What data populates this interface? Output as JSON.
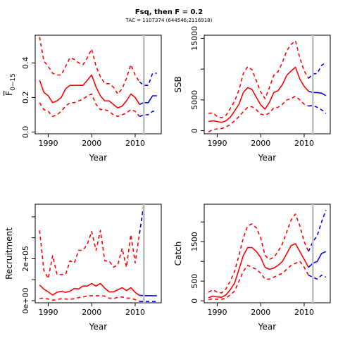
{
  "figure": {
    "title": "Fsq, then F = 0.2",
    "subtitle": "TAC = 1107374 (644546;2116918)"
  },
  "chart_data": [
    {
      "type": "line",
      "panel": "top-left",
      "xlabel": "Year",
      "ylabel": "F",
      "ylabel_sub": "0−15",
      "xlim": [
        1987,
        2016
      ],
      "ylim": [
        -0.01,
        0.56
      ],
      "x_ticks": [
        1990,
        2000,
        2010
      ],
      "y_ticks": [
        0.0,
        0.2,
        0.4
      ],
      "y_tick_labels": [
        "0.0",
        "0.2",
        "0.4"
      ],
      "reference_line_x": 2012,
      "grid": false,
      "legend": "none",
      "series": [
        {
          "role": "historical",
          "style": "solid",
          "color": "#ff0000",
          "x": [
            1988,
            1989,
            1990,
            1991,
            1992,
            1993,
            1994,
            1995,
            1996,
            1997,
            1998,
            1999,
            2000,
            2001,
            2002,
            2003,
            2004,
            2005,
            2006,
            2007,
            2008,
            2009,
            2010,
            2011
          ],
          "y": [
            0.3,
            0.23,
            0.21,
            0.17,
            0.18,
            0.2,
            0.25,
            0.27,
            0.27,
            0.27,
            0.27,
            0.3,
            0.33,
            0.26,
            0.21,
            0.18,
            0.18,
            0.16,
            0.14,
            0.15,
            0.18,
            0.22,
            0.2,
            0.16
          ]
        },
        {
          "role": "historical-upper",
          "style": "dashed",
          "color": "#ff0000",
          "x": [
            1988,
            1989,
            1990,
            1991,
            1992,
            1993,
            1994,
            1995,
            1996,
            1997,
            1998,
            1999,
            2000,
            2001,
            2002,
            2003,
            2004,
            2005,
            2006,
            2007,
            2008,
            2009,
            2010,
            2011
          ],
          "y": [
            0.55,
            0.41,
            0.38,
            0.34,
            0.33,
            0.33,
            0.38,
            0.43,
            0.42,
            0.4,
            0.39,
            0.43,
            0.48,
            0.38,
            0.32,
            0.28,
            0.28,
            0.26,
            0.22,
            0.25,
            0.31,
            0.39,
            0.33,
            0.29
          ]
        },
        {
          "role": "historical-lower",
          "style": "dashed",
          "color": "#ff0000",
          "x": [
            1988,
            1989,
            1990,
            1991,
            1992,
            1993,
            1994,
            1995,
            1996,
            1997,
            1998,
            1999,
            2000,
            2001,
            2002,
            2003,
            2004,
            2005,
            2006,
            2007,
            2008,
            2009,
            2010,
            2011
          ],
          "y": [
            0.17,
            0.13,
            0.12,
            0.09,
            0.1,
            0.12,
            0.15,
            0.17,
            0.17,
            0.18,
            0.19,
            0.21,
            0.22,
            0.16,
            0.13,
            0.13,
            0.12,
            0.1,
            0.09,
            0.1,
            0.11,
            0.13,
            0.12,
            0.09
          ]
        },
        {
          "role": "projection",
          "style": "solid",
          "color": "#0000ff",
          "x": [
            2011,
            2012,
            2013,
            2014,
            2015
          ],
          "y": [
            0.16,
            0.17,
            0.17,
            0.21,
            0.21
          ]
        },
        {
          "role": "projection-upper",
          "style": "dashed",
          "color": "#0000ff",
          "x": [
            2011,
            2012,
            2013,
            2014,
            2015
          ],
          "y": [
            0.29,
            0.27,
            0.27,
            0.34,
            0.34
          ]
        },
        {
          "role": "projection-lower",
          "style": "dashed",
          "color": "#0000ff",
          "x": [
            2011,
            2012,
            2013,
            2014,
            2015
          ],
          "y": [
            0.09,
            0.1,
            0.1,
            0.12,
            0.12
          ]
        }
      ]
    },
    {
      "type": "line",
      "panel": "top-right",
      "xlabel": "Year",
      "ylabel": "SSB",
      "xlim": [
        1987,
        2016
      ],
      "ylim": [
        -500,
        15500
      ],
      "x_ticks": [
        1990,
        2000,
        2010
      ],
      "y_ticks": [
        0,
        5000,
        10000,
        15000
      ],
      "y_tick_labels": [
        "0",
        "5000",
        "",
        "15000"
      ],
      "reference_line_x": 2012,
      "grid": false,
      "legend": "none",
      "series": [
        {
          "role": "historical",
          "style": "solid",
          "color": "#ff0000",
          "x": [
            1988,
            1989,
            1990,
            1991,
            1992,
            1993,
            1994,
            1995,
            1996,
            1997,
            1998,
            1999,
            2000,
            2001,
            2002,
            2003,
            2004,
            2005,
            2006,
            2007,
            2008,
            2009,
            2010,
            2011
          ],
          "y": [
            1500,
            1600,
            1500,
            1350,
            1600,
            2200,
            3200,
            4300,
            6200,
            7000,
            6700,
            5400,
            4200,
            3500,
            4600,
            6200,
            6500,
            7500,
            9000,
            9700,
            10300,
            8400,
            7200,
            6400
          ]
        },
        {
          "role": "historical-upper",
          "style": "dashed",
          "color": "#ff0000",
          "x": [
            1988,
            1989,
            1990,
            1991,
            1992,
            1993,
            1994,
            1995,
            1996,
            1997,
            1998,
            1999,
            2000,
            2001,
            2002,
            2003,
            2004,
            2005,
            2006,
            2007,
            2008,
            2009,
            2010,
            2011
          ],
          "y": [
            2800,
            2900,
            2300,
            2100,
            2500,
            3600,
            4800,
            6600,
            9300,
            10400,
            9900,
            8100,
            6300,
            5200,
            7000,
            9000,
            9600,
            11100,
            13000,
            14000,
            14600,
            11800,
            9700,
            8500
          ]
        },
        {
          "role": "historical-lower",
          "style": "dashed",
          "color": "#ff0000",
          "x": [
            1988,
            1989,
            1990,
            1991,
            1992,
            1993,
            1994,
            1995,
            1996,
            1997,
            1998,
            1999,
            2000,
            2001,
            2002,
            2003,
            2004,
            2005,
            2006,
            2007,
            2008,
            2009,
            2010,
            2011
          ],
          "y": [
            -200,
            200,
            300,
            350,
            600,
            1000,
            1600,
            2300,
            3100,
            3800,
            3900,
            3400,
            2700,
            2500,
            2900,
            3700,
            3800,
            4300,
            5000,
            5200,
            5600,
            5000,
            4300,
            4000
          ]
        },
        {
          "role": "projection",
          "style": "solid",
          "color": "#0000ff",
          "x": [
            2011,
            2012,
            2013,
            2014,
            2015
          ],
          "y": [
            6400,
            6200,
            6200,
            6100,
            5700
          ]
        },
        {
          "role": "projection-upper",
          "style": "dashed",
          "color": "#0000ff",
          "x": [
            2011,
            2012,
            2013,
            2014,
            2015
          ],
          "y": [
            8500,
            9200,
            9300,
            10600,
            11100
          ]
        },
        {
          "role": "projection-lower",
          "style": "dashed",
          "color": "#0000ff",
          "x": [
            2011,
            2012,
            2013,
            2014,
            2015
          ],
          "y": [
            4000,
            4100,
            3800,
            3400,
            2800
          ]
        }
      ]
    },
    {
      "type": "line",
      "panel": "bottom-left",
      "xlabel": "Year",
      "ylabel": "Recruitment",
      "xlim": [
        1987,
        2016
      ],
      "ylim": [
        -10000,
        460000
      ],
      "x_ticks": [
        1990,
        2000,
        2010
      ],
      "y_ticks": [
        0,
        100000,
        200000,
        300000,
        400000
      ],
      "y_tick_labels": [
        "0e+00",
        "",
        "2e+05",
        "",
        ""
      ],
      "reference_line_x": 2012,
      "grid": false,
      "legend": "none",
      "series": [
        {
          "role": "historical",
          "style": "solid",
          "color": "#ff0000",
          "x": [
            1988,
            1989,
            1990,
            1991,
            1992,
            1993,
            1994,
            1995,
            1996,
            1997,
            1998,
            1999,
            2000,
            2001,
            2002,
            2003,
            2004,
            2005,
            2006,
            2007,
            2008,
            2009,
            2010,
            2011
          ],
          "y": [
            75000,
            55000,
            42000,
            27000,
            40000,
            45000,
            40000,
            45000,
            58000,
            56000,
            70000,
            70000,
            82000,
            70000,
            82000,
            60000,
            42000,
            42000,
            52000,
            62000,
            48000,
            62000,
            40000,
            25000
          ]
        },
        {
          "role": "historical-upper",
          "style": "dashed",
          "color": "#ff0000",
          "x": [
            1988,
            1989,
            1990,
            1991,
            1992,
            1993,
            1994,
            1995,
            1996,
            1997,
            1998,
            1999,
            2000,
            2001,
            2002,
            2003,
            2004,
            2005,
            2006,
            2007,
            2008,
            2009,
            2010,
            2011,
            2012
          ],
          "y": [
            335000,
            145000,
            105000,
            215000,
            125000,
            125000,
            125000,
            190000,
            180000,
            240000,
            240000,
            270000,
            330000,
            240000,
            335000,
            190000,
            190000,
            160000,
            170000,
            250000,
            160000,
            315000,
            180000,
            320000,
            460000
          ]
        },
        {
          "role": "historical-lower",
          "style": "dashed",
          "color": "#ff0000",
          "x": [
            1988,
            1989,
            1990,
            1991,
            1992,
            1993,
            1994,
            1995,
            1996,
            1997,
            1998,
            1999,
            2000,
            2001,
            2002,
            2003,
            2004,
            2005,
            2006,
            2007,
            2008,
            2009,
            2010,
            2011
          ],
          "y": [
            10000,
            12000,
            8000,
            2000,
            5000,
            10000,
            8000,
            6000,
            10000,
            15000,
            18000,
            22000,
            24000,
            24000,
            24000,
            22000,
            12000,
            10000,
            16000,
            18000,
            12000,
            12000,
            5000,
            -3000
          ]
        },
        {
          "role": "projection",
          "style": "solid",
          "color": "#0000ff",
          "x": [
            2011,
            2012,
            2013,
            2014,
            2015
          ],
          "y": [
            25000,
            24500,
            24000,
            24000,
            23500
          ]
        },
        {
          "role": "projection-upper",
          "style": "dashed",
          "color": "#0000ff",
          "x": [
            2011,
            2012
          ],
          "y": [
            320000,
            460000
          ]
        },
        {
          "role": "projection-lower",
          "style": "dashed",
          "color": "#0000ff",
          "x": [
            2011,
            2012,
            2013,
            2014,
            2015
          ],
          "y": [
            -3000,
            -4000,
            -4000,
            -4000,
            -4000
          ]
        }
      ]
    },
    {
      "type": "line",
      "panel": "bottom-right",
      "xlabel": "Year",
      "ylabel": "Catch",
      "xlim": [
        1987,
        2016
      ],
      "ylim": [
        -50,
        2450
      ],
      "x_ticks": [
        1990,
        2000,
        2010
      ],
      "y_ticks": [
        0,
        500,
        1000,
        1500,
        2000
      ],
      "y_tick_labels": [
        "0",
        "500",
        "",
        "1500",
        ""
      ],
      "reference_line_x": 2012,
      "grid": false,
      "legend": "none",
      "series": [
        {
          "role": "historical",
          "style": "solid",
          "color": "#ff0000",
          "x": [
            1988,
            1989,
            1990,
            1991,
            1992,
            1993,
            1994,
            1995,
            1996,
            1997,
            1998,
            1999,
            2000,
            2001,
            2002,
            2003,
            2004,
            2005,
            2006,
            2007,
            2008,
            2009,
            2010,
            2011
          ],
          "y": [
            80,
            120,
            100,
            90,
            150,
            280,
            450,
            800,
            1150,
            1350,
            1350,
            1250,
            1100,
            850,
            800,
            830,
            900,
            1000,
            1200,
            1400,
            1450,
            1250,
            1050,
            850
          ]
        },
        {
          "role": "historical-upper",
          "style": "dashed",
          "color": "#ff0000",
          "x": [
            1988,
            1989,
            1990,
            1991,
            1992,
            1993,
            1994,
            1995,
            1996,
            1997,
            1998,
            1999,
            2000,
            2001,
            2002,
            2003,
            2004,
            2005,
            2006,
            2007,
            2008,
            2009,
            2010,
            2011
          ],
          "y": [
            220,
            280,
            220,
            200,
            300,
            500,
            750,
            1150,
            1600,
            1900,
            1950,
            1850,
            1600,
            1150,
            1050,
            1100,
            1250,
            1450,
            1750,
            2050,
            2200,
            1900,
            1500,
            1250
          ]
        },
        {
          "role": "historical-lower",
          "style": "dashed",
          "color": "#ff0000",
          "x": [
            1988,
            1989,
            1990,
            1991,
            1992,
            1993,
            1994,
            1995,
            1996,
            1997,
            1998,
            1999,
            2000,
            2001,
            2002,
            2003,
            2004,
            2005,
            2006,
            2007,
            2008,
            2009,
            2010,
            2011
          ],
          "y": [
            30,
            50,
            40,
            40,
            70,
            150,
            250,
            500,
            750,
            900,
            850,
            800,
            700,
            550,
            550,
            600,
            650,
            700,
            800,
            900,
            950,
            1000,
            850,
            650
          ]
        },
        {
          "role": "projection",
          "style": "solid",
          "color": "#0000ff",
          "x": [
            2011,
            2012,
            2013,
            2014,
            2015
          ],
          "y": [
            850,
            950,
            1000,
            1200,
            1250
          ]
        },
        {
          "role": "projection-upper",
          "style": "dashed",
          "color": "#0000ff",
          "x": [
            2011,
            2012,
            2013,
            2014,
            2015
          ],
          "y": [
            1250,
            1500,
            1650,
            2000,
            2300
          ]
        },
        {
          "role": "projection-lower",
          "style": "dashed",
          "color": "#0000ff",
          "x": [
            2011,
            2012,
            2013,
            2014,
            2015
          ],
          "y": [
            650,
            600,
            550,
            650,
            600
          ]
        }
      ]
    }
  ]
}
